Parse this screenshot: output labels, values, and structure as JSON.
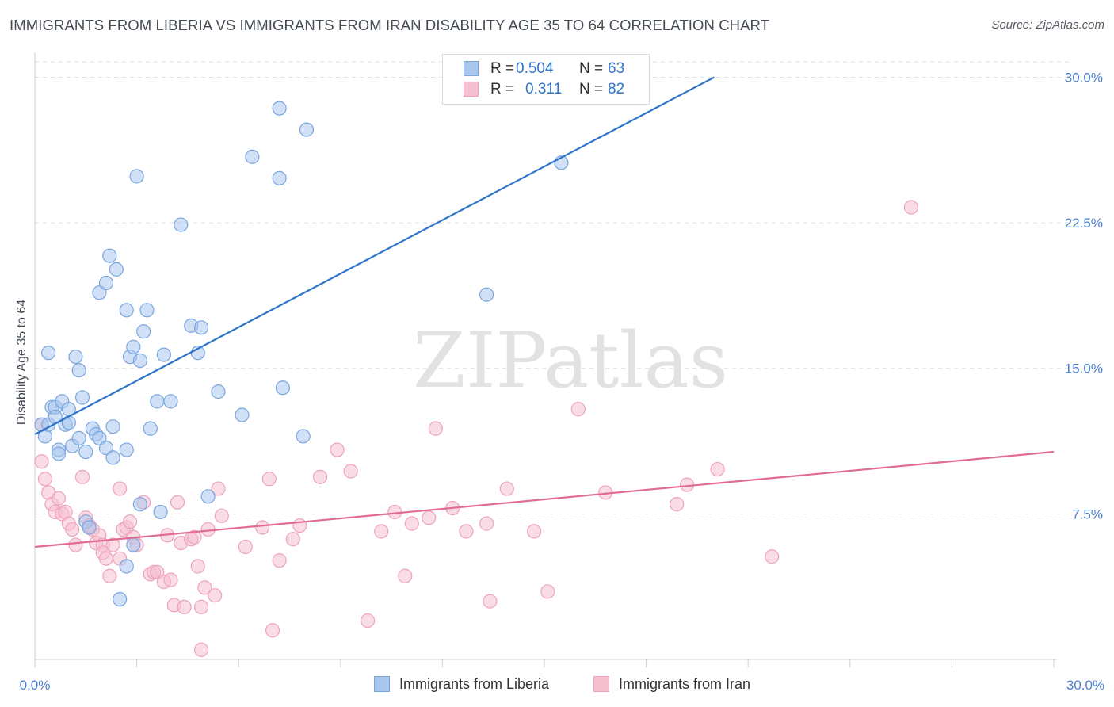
{
  "header": {
    "title": "IMMIGRANTS FROM LIBERIA VS IMMIGRANTS FROM IRAN DISABILITY AGE 35 TO 64 CORRELATION CHART",
    "source": "Source: ZipAtlas.com"
  },
  "watermark": "ZIPatlas",
  "legend_top": {
    "rows": [
      {
        "r_label": "R =",
        "r_value": "0.504",
        "n_label": "N =",
        "n_value": "63"
      },
      {
        "r_label": "R =",
        "r_value": "0.311",
        "n_label": "N =",
        "n_value": "82"
      }
    ]
  },
  "legend_bottom": {
    "items": [
      "Immigrants from Liberia",
      "Immigrants from Iran"
    ]
  },
  "colors": {
    "liberia_fill": "#a9c6ee",
    "liberia_stroke": "#7aa6df",
    "liberia_line": "#2e74c9",
    "iran_fill": "#f6bfd0",
    "iran_stroke": "#eea3bb",
    "iran_line": "#e26b95",
    "tick": "#4a7fd0",
    "grid": "#dedede"
  },
  "chart_data": {
    "type": "scatter",
    "title": "IMMIGRANTS FROM LIBERIA VS IMMIGRANTS FROM IRAN DISABILITY AGE 35 TO 64 CORRELATION CHART",
    "xlabel": "",
    "ylabel": "Disability Age 35 to 64",
    "xlim": [
      0,
      30
    ],
    "ylim": [
      0,
      31
    ],
    "x_tick_labels": [
      "0.0%",
      "30.0%"
    ],
    "y_ticks": [
      7.5,
      15.0,
      22.5,
      30.0
    ],
    "y_tick_labels": [
      "7.5%",
      "15.0%",
      "22.5%",
      "30.0%"
    ],
    "grid": true,
    "series": [
      {
        "name": "Immigrants from Liberia",
        "r": 0.504,
        "n": 63,
        "trend": {
          "x0": 0.0,
          "y0": 11.6,
          "x1": 20.0,
          "y1": 30.0
        },
        "points": [
          [
            0.2,
            12.1
          ],
          [
            0.3,
            11.5
          ],
          [
            0.4,
            12.1
          ],
          [
            0.4,
            15.8
          ],
          [
            0.5,
            13.0
          ],
          [
            0.6,
            13.0
          ],
          [
            0.6,
            12.5
          ],
          [
            0.7,
            10.8
          ],
          [
            0.7,
            10.6
          ],
          [
            0.8,
            13.3
          ],
          [
            0.9,
            12.1
          ],
          [
            1.0,
            12.9
          ],
          [
            1.0,
            12.2
          ],
          [
            1.1,
            11.0
          ],
          [
            1.2,
            15.6
          ],
          [
            1.3,
            11.4
          ],
          [
            1.3,
            14.9
          ],
          [
            1.4,
            13.5
          ],
          [
            1.5,
            10.7
          ],
          [
            1.5,
            7.1
          ],
          [
            1.7,
            11.9
          ],
          [
            1.8,
            11.6
          ],
          [
            1.9,
            11.4
          ],
          [
            1.9,
            18.9
          ],
          [
            2.1,
            19.4
          ],
          [
            2.1,
            10.9
          ],
          [
            2.2,
            20.8
          ],
          [
            2.3,
            10.4
          ],
          [
            2.3,
            12.0
          ],
          [
            2.4,
            20.1
          ],
          [
            2.5,
            3.1
          ],
          [
            2.7,
            4.8
          ],
          [
            2.7,
            18.0
          ],
          [
            2.7,
            10.8
          ],
          [
            2.8,
            15.6
          ],
          [
            2.9,
            16.1
          ],
          [
            2.9,
            5.9
          ],
          [
            3.0,
            24.9
          ],
          [
            3.1,
            8.0
          ],
          [
            3.1,
            15.4
          ],
          [
            3.2,
            16.9
          ],
          [
            3.3,
            18.0
          ],
          [
            3.4,
            11.9
          ],
          [
            3.6,
            13.3
          ],
          [
            3.7,
            7.6
          ],
          [
            3.8,
            15.7
          ],
          [
            4.0,
            13.3
          ],
          [
            4.3,
            22.4
          ],
          [
            4.6,
            17.2
          ],
          [
            4.8,
            15.8
          ],
          [
            4.9,
            17.1
          ],
          [
            5.1,
            8.4
          ],
          [
            5.4,
            13.8
          ],
          [
            6.1,
            12.6
          ],
          [
            6.4,
            25.9
          ],
          [
            7.2,
            24.8
          ],
          [
            7.2,
            28.4
          ],
          [
            7.3,
            14.0
          ],
          [
            7.9,
            11.5
          ],
          [
            8.0,
            27.3
          ],
          [
            13.3,
            18.8
          ],
          [
            15.5,
            25.6
          ],
          [
            1.6,
            6.8
          ]
        ]
      },
      {
        "name": "Immigrants from Iran",
        "r": 0.311,
        "n": 82,
        "trend": {
          "x0": 0.0,
          "y0": 5.8,
          "x1": 30.0,
          "y1": 10.7
        },
        "points": [
          [
            0.2,
            12.1
          ],
          [
            0.2,
            10.2
          ],
          [
            0.3,
            9.3
          ],
          [
            0.4,
            8.6
          ],
          [
            0.5,
            8.0
          ],
          [
            0.6,
            7.6
          ],
          [
            0.7,
            8.3
          ],
          [
            0.8,
            7.5
          ],
          [
            0.9,
            7.6
          ],
          [
            1.0,
            7.0
          ],
          [
            1.1,
            6.7
          ],
          [
            1.2,
            5.9
          ],
          [
            1.4,
            9.4
          ],
          [
            1.5,
            7.3
          ],
          [
            1.6,
            6.9
          ],
          [
            1.7,
            6.7
          ],
          [
            1.8,
            6.0
          ],
          [
            1.9,
            6.4
          ],
          [
            2.0,
            5.9
          ],
          [
            2.0,
            5.5
          ],
          [
            2.1,
            5.2
          ],
          [
            2.2,
            4.3
          ],
          [
            2.3,
            5.9
          ],
          [
            2.5,
            5.2
          ],
          [
            2.5,
            8.8
          ],
          [
            2.6,
            6.7
          ],
          [
            2.7,
            6.8
          ],
          [
            2.8,
            7.1
          ],
          [
            2.9,
            6.3
          ],
          [
            3.0,
            5.9
          ],
          [
            3.2,
            8.1
          ],
          [
            3.4,
            4.4
          ],
          [
            3.5,
            4.5
          ],
          [
            3.6,
            4.5
          ],
          [
            3.8,
            4.0
          ],
          [
            3.9,
            6.4
          ],
          [
            4.0,
            4.1
          ],
          [
            4.1,
            2.8
          ],
          [
            4.2,
            8.1
          ],
          [
            4.3,
            6.0
          ],
          [
            4.4,
            2.7
          ],
          [
            4.6,
            6.2
          ],
          [
            4.7,
            6.3
          ],
          [
            4.8,
            4.8
          ],
          [
            4.9,
            0.5
          ],
          [
            4.9,
            2.7
          ],
          [
            5.0,
            3.7
          ],
          [
            5.1,
            6.7
          ],
          [
            5.3,
            3.3
          ],
          [
            5.4,
            8.8
          ],
          [
            5.5,
            7.4
          ],
          [
            6.2,
            5.8
          ],
          [
            6.7,
            6.8
          ],
          [
            6.9,
            9.3
          ],
          [
            7.0,
            1.5
          ],
          [
            7.2,
            5.1
          ],
          [
            7.6,
            6.2
          ],
          [
            7.8,
            6.9
          ],
          [
            8.4,
            9.4
          ],
          [
            8.9,
            10.8
          ],
          [
            9.3,
            9.7
          ],
          [
            9.8,
            2.0
          ],
          [
            10.2,
            6.6
          ],
          [
            10.6,
            7.6
          ],
          [
            10.9,
            4.3
          ],
          [
            11.1,
            7.0
          ],
          [
            11.6,
            7.3
          ],
          [
            11.8,
            11.9
          ],
          [
            12.3,
            7.8
          ],
          [
            12.7,
            6.6
          ],
          [
            13.3,
            7.0
          ],
          [
            13.4,
            3.0
          ],
          [
            13.9,
            8.8
          ],
          [
            14.7,
            6.6
          ],
          [
            15.1,
            3.5
          ],
          [
            16.0,
            12.9
          ],
          [
            16.8,
            8.6
          ],
          [
            18.9,
            8.0
          ],
          [
            19.2,
            9.0
          ],
          [
            20.1,
            9.8
          ],
          [
            21.7,
            5.3
          ],
          [
            25.8,
            23.3
          ]
        ]
      }
    ]
  }
}
